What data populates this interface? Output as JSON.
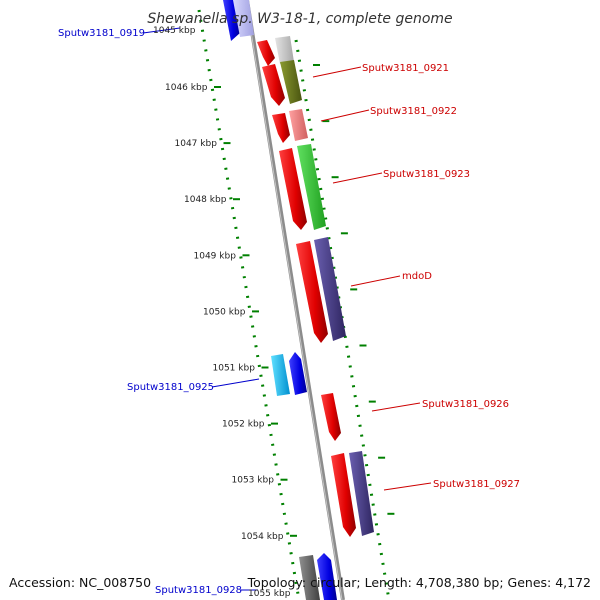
{
  "title": "Shewanella sp. W3-18-1, complete genome",
  "footer": {
    "accession": "Accession: NC_008750",
    "topology": "Topology: circular; Length: 4,708,380 bp; Genes: 4,172"
  },
  "ticks": [
    "1046 kbp",
    "1047 kbp",
    "1048 kbp",
    "1049 kbp",
    "1050 kbp",
    "1051 kbp",
    "1052 kbp",
    "1053 kbp",
    "1054 kbp"
  ],
  "partial_ticks": {
    "top": "1045 kbp",
    "bottom": "1055 kbp"
  },
  "gene_labels": [
    {
      "id": "sputw0919",
      "text": "Sputw3181_0919",
      "color": "#0000cc"
    },
    {
      "id": "sputw0921",
      "text": "Sputw3181_0921",
      "color": "#cc0000"
    },
    {
      "id": "sputw0922",
      "text": "Sputw3181_0922",
      "color": "#cc0000"
    },
    {
      "id": "sputw0923",
      "text": "Sputw3181_0923",
      "color": "#cc0000"
    },
    {
      "id": "mdod",
      "text": "mdoD",
      "color": "#cc0000"
    },
    {
      "id": "sputw0925",
      "text": "Sputw3181_0925",
      "color": "#0000cc"
    },
    {
      "id": "sputw0926",
      "text": "Sputw3181_0926",
      "color": "#cc0000"
    },
    {
      "id": "sputw0927",
      "text": "Sputw3181_0927",
      "color": "#cc0000"
    },
    {
      "id": "sputw0928",
      "text": "Sputw3181_0928",
      "color": "#0000cc"
    }
  ],
  "colors": {
    "forward_cds": "#ff0000",
    "reverse_cds": "#0000ff",
    "backbone": "#8a8a8a",
    "tick": "#008000",
    "cog_olive": "#6b7a1e",
    "cog_pink": "#f08080",
    "cog_green": "#33cc33",
    "cog_purple": "#4b3f8c",
    "cog_cyan": "#00bfff",
    "cog_gray": "#c8c8c8"
  }
}
